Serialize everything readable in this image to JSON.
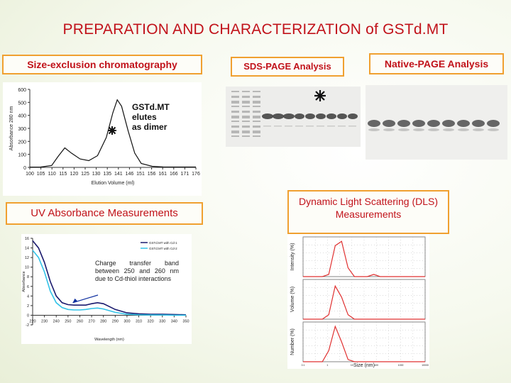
{
  "title": "PREPARATION AND CHARACTERIZATION of GSTd.MT",
  "labels": {
    "sec": "Size-exclusion chromatography",
    "sds": "SDS-PAGE Analysis",
    "native": "Native-PAGE Analysis",
    "uv": "UV Absorbance Measurements",
    "dls": "Dynamic Light Scattering (DLS) Measurements"
  },
  "sec_annotation": [
    "GSTd.MT",
    "elutes",
    "as dimer"
  ],
  "uv_annotation": "Charge transfer band between 250 and 260 nm due to Cd-thiol interactions",
  "colors": {
    "title": "#c1121a",
    "box_border": "#f0a030",
    "dls_curve": "#e03030",
    "uv_series_1": "#1a1a6e",
    "uv_series_2": "#33c3e8"
  },
  "chart_data": [
    {
      "type": "line",
      "title": "",
      "xlabel": "Elution Volume (ml)",
      "ylabel": "Absorbance 280 nm",
      "ylim": [
        0,
        600
      ],
      "yticks": [
        "0",
        "100",
        "200",
        "300",
        "400",
        "500",
        "600"
      ],
      "xticks": [
        "100",
        "105",
        "110",
        "115",
        "120",
        "125",
        "130",
        "135",
        "141",
        "146",
        "151",
        "156",
        "161",
        "166",
        "171",
        "176"
      ],
      "x": [
        100,
        105,
        110,
        113,
        116,
        119,
        123,
        127,
        131,
        135,
        138,
        140,
        142,
        145,
        148,
        151,
        156,
        161,
        166,
        171,
        176
      ],
      "series": [
        {
          "values": [
            2,
            3,
            15,
            85,
            150,
            110,
            65,
            52,
            90,
            230,
            420,
            520,
            470,
            280,
            110,
            30,
            8,
            4,
            3,
            3,
            3
          ]
        }
      ]
    },
    {
      "type": "line",
      "title": "",
      "xlabel": "Wavelength (nm)",
      "ylabel": "Absorbance",
      "ylim": [
        -2,
        16
      ],
      "yticks": [
        "-2",
        "0",
        "2",
        "4",
        "6",
        "8",
        "10",
        "12",
        "14",
        "16"
      ],
      "xticks": [
        "220",
        "230",
        "240",
        "250",
        "260",
        "270",
        "280",
        "290",
        "300",
        "310",
        "320",
        "330",
        "340",
        "350"
      ],
      "legend": [
        "GSTd.MT with Cd-1",
        "GSTd.MT with Cd-2"
      ],
      "x": [
        220,
        225,
        230,
        235,
        240,
        245,
        250,
        255,
        260,
        265,
        270,
        275,
        280,
        290,
        300,
        310,
        320,
        330,
        340,
        350
      ],
      "series": [
        {
          "name": "GSTd.MT with Cd-1",
          "values": [
            15.5,
            14,
            11,
            7,
            4,
            2.6,
            2.2,
            2.1,
            2.1,
            2.1,
            2.4,
            2.6,
            2.4,
            1.2,
            0.5,
            0.3,
            0.2,
            0.2,
            0.15,
            0.1
          ]
        },
        {
          "name": "GSTd.MT with Cd-2",
          "values": [
            13.5,
            12,
            9,
            5,
            2.6,
            1.6,
            1.2,
            1.1,
            1.1,
            1.2,
            1.4,
            1.5,
            1.3,
            0.6,
            0.2,
            0.1,
            0.05,
            0.05,
            0,
            0
          ]
        }
      ]
    },
    {
      "type": "line",
      "title": "",
      "xlabel": "Size (nm)",
      "panels": [
        {
          "ylabel": "Intensity (%)",
          "values": [
            0,
            0,
            0,
            0,
            1,
            14,
            16,
            4,
            0,
            0,
            0,
            1,
            0,
            0,
            0,
            0,
            0,
            0,
            0,
            0
          ]
        },
        {
          "ylabel": "Volume (%)",
          "values": [
            0,
            0,
            0,
            0,
            2,
            15,
            10,
            2,
            0,
            0,
            0,
            0,
            0,
            0,
            0,
            0,
            0,
            0,
            0,
            0
          ]
        },
        {
          "ylabel": "Number (%)",
          "values": [
            0,
            0,
            0,
            0,
            5,
            16,
            9,
            1,
            0,
            0,
            0,
            0,
            0,
            0,
            0,
            0,
            0,
            0,
            0,
            0
          ]
        }
      ],
      "xticks": [
        "0.1",
        "1",
        "10",
        "100",
        "1000",
        "10000"
      ]
    }
  ]
}
